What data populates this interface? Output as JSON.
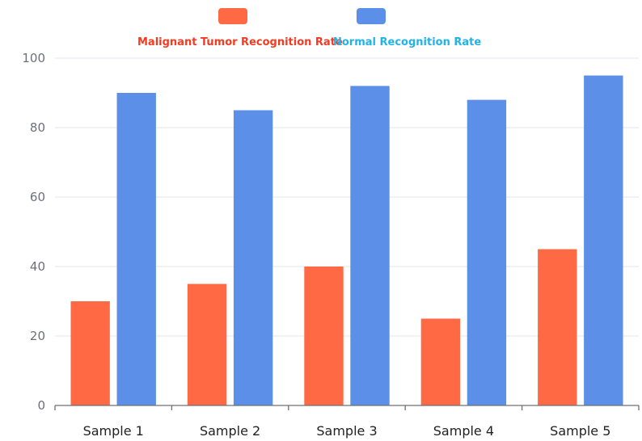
{
  "chart_data": {
    "type": "bar",
    "title": "",
    "xlabel": "",
    "ylabel": "",
    "categories": [
      "Sample 1",
      "Sample 2",
      "Sample 3",
      "Sample 4",
      "Sample 5"
    ],
    "ylim": [
      0,
      100
    ],
    "yticks": [
      "0",
      "20",
      "40",
      "60",
      "80",
      "100"
    ],
    "grid": true,
    "legend_position": "top-center",
    "series": [
      {
        "name": "Malignant Tumor Recognition Rate",
        "color": "#ff6a45",
        "label_color": "#f43b21",
        "values": [
          30,
          35,
          40,
          25,
          45
        ]
      },
      {
        "name": "Normal Recognition Rate",
        "color": "#5b8fe8",
        "label_color": "#1fb3e8",
        "values": [
          90,
          85,
          92,
          88,
          95
        ]
      }
    ]
  }
}
